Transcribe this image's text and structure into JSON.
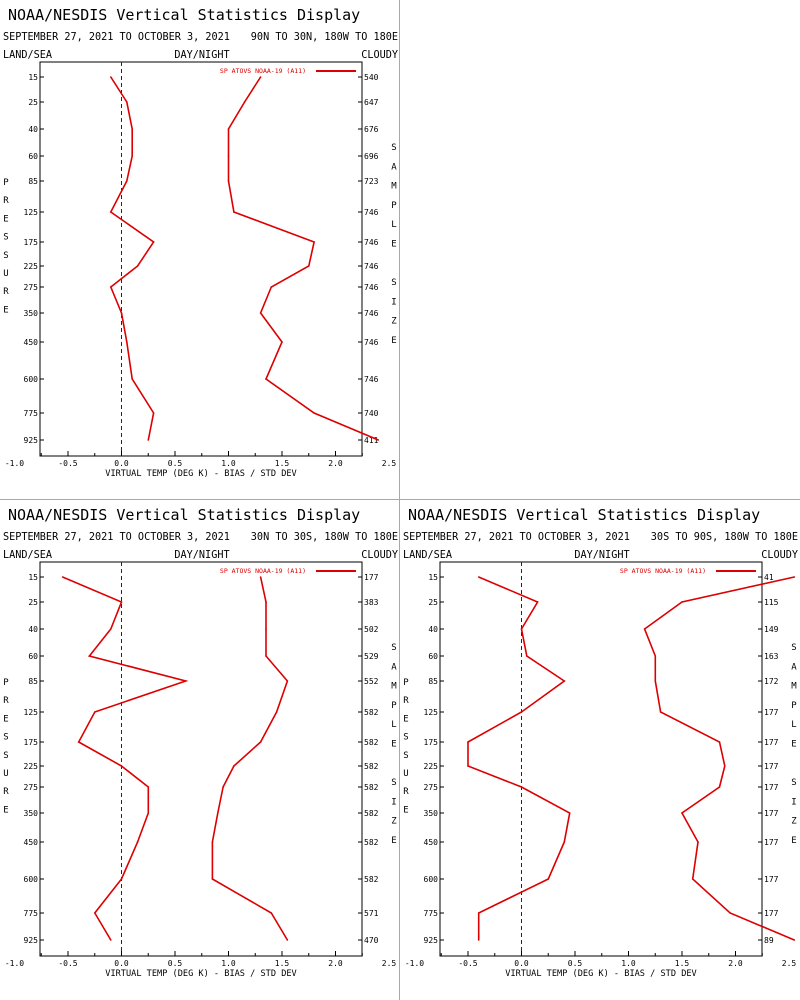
{
  "layout_note": "",
  "panels": [
    {
      "title": "NOAA/NESDIS Vertical Statistics Display",
      "date_range": "SEPTEMBER 27, 2021 TO OCTOBER 3, 2021",
      "region": "90N TO 30N, 180W TO 180E",
      "left_label": "LAND/SEA",
      "center_label": "DAY/NIGHT",
      "right_label": "CLOUDY",
      "y_axis_title": "PRESSURE",
      "right_axis_title": "SAMPLE SIZE",
      "x_axis_title": "VIRTUAL TEMP (DEG K) - BIAS / STD DEV",
      "legend": "SP ATOVS NOAA-19 (A11)",
      "line_color": "#dd0000"
    },
    {
      "title": "NOAA/NESDIS Vertical Statistics Display",
      "date_range": "SEPTEMBER 27, 2021 TO OCTOBER 3, 2021",
      "region": "30N TO 30S, 180W TO 180E",
      "left_label": "LAND/SEA",
      "center_label": "DAY/NIGHT",
      "right_label": "CLOUDY",
      "y_axis_title": "PRESSURE",
      "right_axis_title": "SAMPLE SIZE",
      "x_axis_title": "VIRTUAL TEMP (DEG K) - BIAS / STD DEV",
      "legend": "SP ATOVS NOAA-19 (A11)",
      "line_color": "#dd0000"
    },
    {
      "title": "NOAA/NESDIS Vertical Statistics Display",
      "date_range": "SEPTEMBER 27, 2021 TO OCTOBER 3, 2021",
      "region": "30S TO 90S, 180W TO 180E",
      "left_label": "LAND/SEA",
      "center_label": "DAY/NIGHT",
      "right_label": "CLOUDY",
      "y_axis_title": "PRESSURE",
      "right_axis_title": "SAMPLE SIZE",
      "x_axis_title": "VIRTUAL TEMP (DEG K) - BIAS / STD DEV",
      "legend": "SP ATOVS NOAA-19 (A11)",
      "line_color": "#dd0000"
    }
  ],
  "chart_data": [
    {
      "type": "line",
      "pressure_levels": [
        "15",
        "25",
        "40",
        "60",
        "85",
        "125",
        "175",
        "225",
        "275",
        "350",
        "450",
        "600",
        "775",
        "925"
      ],
      "xlim": [
        -1.5,
        4.5
      ],
      "x_ticks": [
        "-1.0",
        "-0.5",
        "0.0",
        "0.5",
        "1.0",
        "1.5",
        "2.0",
        "2.5",
        "3.0",
        "3.5",
        "4.0"
      ],
      "series": [
        {
          "name": "",
          "values": [
            -0.1,
            0.05,
            0.1,
            0.1,
            0.05,
            -0.1,
            0.3,
            0.15,
            -0.1,
            0.0,
            0.05,
            0.1,
            0.3,
            0.25
          ]
        },
        {
          "name": "",
          "values": [
            1.3,
            1.15,
            1.0,
            1.0,
            1.0,
            1.05,
            1.8,
            1.75,
            1.4,
            1.3,
            1.5,
            1.35,
            1.8,
            2.4
          ]
        }
      ],
      "sample_size": [
        "540",
        "647",
        "676",
        "696",
        "723",
        "746",
        "746",
        "746",
        "746",
        "746",
        "746",
        "746",
        "740",
        "411"
      ]
    },
    {
      "type": "line",
      "pressure_levels": [
        "15",
        "25",
        "40",
        "60",
        "85",
        "125",
        "175",
        "225",
        "275",
        "350",
        "450",
        "600",
        "775",
        "925"
      ],
      "xlim": [
        -1.5,
        4.5
      ],
      "x_ticks": [
        "-1.0",
        "-0.5",
        "0.0",
        "0.5",
        "1.0",
        "1.5",
        "2.0",
        "2.5",
        "3.0",
        "3.5",
        "4.0"
      ],
      "series": [
        {
          "name": "",
          "values": [
            -0.55,
            0.0,
            -0.1,
            -0.3,
            0.6,
            -0.25,
            -0.4,
            0.0,
            0.25,
            0.25,
            0.15,
            0.0,
            -0.25,
            -0.1
          ]
        },
        {
          "name": "",
          "values": [
            1.3,
            1.35,
            1.35,
            1.35,
            1.55,
            1.45,
            1.3,
            1.05,
            0.95,
            0.9,
            0.85,
            0.85,
            1.4,
            1.55
          ]
        }
      ],
      "sample_size": [
        "177",
        "383",
        "502",
        "529",
        "552",
        "582",
        "582",
        "582",
        "582",
        "582",
        "582",
        "582",
        "571",
        "470"
      ]
    },
    {
      "type": "line",
      "pressure_levels": [
        "15",
        "25",
        "40",
        "60",
        "85",
        "125",
        "175",
        "225",
        "275",
        "350",
        "450",
        "600",
        "775",
        "925"
      ],
      "xlim": [
        -1.5,
        4.5
      ],
      "x_ticks": [
        "-1.0",
        "-0.5",
        "0.0",
        "0.5",
        "1.0",
        "1.5",
        "2.0",
        "2.5",
        "3.0",
        "3.5",
        "4.0"
      ],
      "series": [
        {
          "name": "",
          "values": [
            -0.4,
            0.15,
            0.0,
            0.05,
            0.4,
            0.0,
            -0.5,
            -0.5,
            0.0,
            0.45,
            0.4,
            0.25,
            -0.4,
            -0.4
          ]
        },
        {
          "name": "",
          "values": [
            2.55,
            1.5,
            1.15,
            1.25,
            1.25,
            1.3,
            1.85,
            1.9,
            1.85,
            1.5,
            1.65,
            1.6,
            1.95,
            2.55
          ]
        }
      ],
      "sample_size": [
        "41",
        "115",
        "149",
        "163",
        "172",
        "177",
        "177",
        "177",
        "177",
        "177",
        "177",
        "177",
        "177",
        "89"
      ]
    }
  ]
}
